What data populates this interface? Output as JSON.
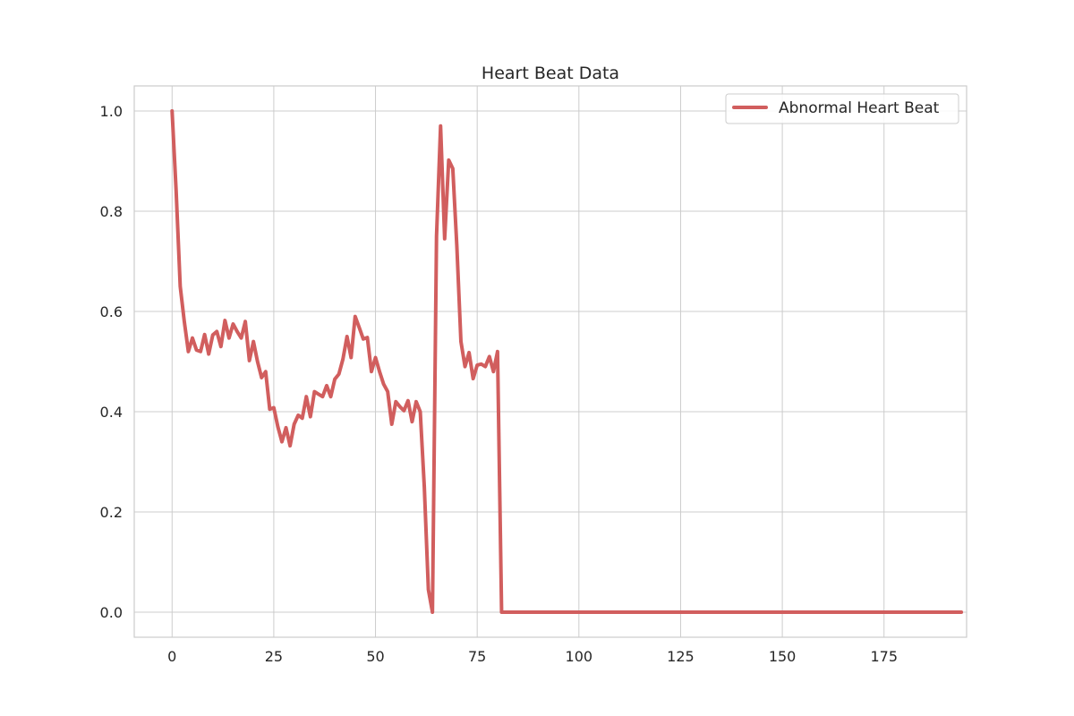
{
  "chart_data": {
    "type": "line",
    "title": "Heart Beat Data",
    "xlabel": "",
    "ylabel": "",
    "xlim": [
      -9.3,
      195.3
    ],
    "ylim": [
      -0.05,
      1.05
    ],
    "x_ticks": [
      0,
      25,
      50,
      75,
      100,
      125,
      150,
      175
    ],
    "y_ticks": [
      0.0,
      0.2,
      0.4,
      0.6,
      0.8,
      1.0
    ],
    "x_tick_labels": [
      "0",
      "25",
      "50",
      "75",
      "100",
      "125",
      "150",
      "175"
    ],
    "y_tick_labels": [
      "0.0",
      "0.2",
      "0.4",
      "0.6",
      "0.8",
      "1.0"
    ],
    "grid": true,
    "legend_position": "top-right",
    "series": [
      {
        "name": "Abnormal Heart Beat",
        "color": "#d15e5e",
        "values": [
          1.0,
          0.84,
          0.65,
          0.58,
          0.52,
          0.547,
          0.523,
          0.52,
          0.554,
          0.515,
          0.553,
          0.56,
          0.53,
          0.582,
          0.547,
          0.575,
          0.56,
          0.547,
          0.58,
          0.502,
          0.54,
          0.5,
          0.468,
          0.48,
          0.405,
          0.408,
          0.37,
          0.34,
          0.368,
          0.332,
          0.375,
          0.393,
          0.387,
          0.43,
          0.39,
          0.44,
          0.435,
          0.43,
          0.452,
          0.43,
          0.465,
          0.475,
          0.505,
          0.55,
          0.508,
          0.59,
          0.568,
          0.545,
          0.548,
          0.48,
          0.508,
          0.48,
          0.455,
          0.44,
          0.375,
          0.42,
          0.41,
          0.402,
          0.422,
          0.38,
          0.42,
          0.4,
          0.25,
          0.045,
          0.0,
          0.75,
          0.97,
          0.745,
          0.902,
          0.885,
          0.73,
          0.54,
          0.49,
          0.518,
          0.466,
          0.493,
          0.495,
          0.49,
          0.51,
          0.48,
          0.52,
          0.0,
          0.0,
          0.0,
          0.0,
          0.0,
          0.0,
          0.0,
          0.0,
          0.0,
          0.0,
          0.0,
          0.0,
          0.0,
          0.0,
          0.0,
          0.0,
          0.0,
          0.0,
          0.0,
          0.0,
          0.0,
          0.0,
          0.0,
          0.0,
          0.0,
          0.0,
          0.0,
          0.0,
          0.0,
          0.0,
          0.0,
          0.0,
          0.0,
          0.0,
          0.0,
          0.0,
          0.0,
          0.0,
          0.0,
          0.0,
          0.0,
          0.0,
          0.0,
          0.0,
          0.0,
          0.0,
          0.0,
          0.0,
          0.0,
          0.0,
          0.0,
          0.0,
          0.0,
          0.0,
          0.0,
          0.0,
          0.0,
          0.0,
          0.0,
          0.0,
          0.0,
          0.0,
          0.0,
          0.0,
          0.0,
          0.0,
          0.0,
          0.0,
          0.0,
          0.0,
          0.0,
          0.0,
          0.0,
          0.0,
          0.0,
          0.0,
          0.0,
          0.0,
          0.0,
          0.0,
          0.0,
          0.0,
          0.0,
          0.0,
          0.0,
          0.0,
          0.0,
          0.0,
          0.0,
          0.0,
          0.0,
          0.0,
          0.0,
          0.0,
          0.0,
          0.0,
          0.0,
          0.0,
          0.0,
          0.0,
          0.0,
          0.0,
          0.0,
          0.0,
          0.0,
          0.0,
          0.0,
          0.0,
          0.0,
          0.0,
          0.0,
          0.0,
          0.0,
          0.0
        ]
      }
    ]
  }
}
